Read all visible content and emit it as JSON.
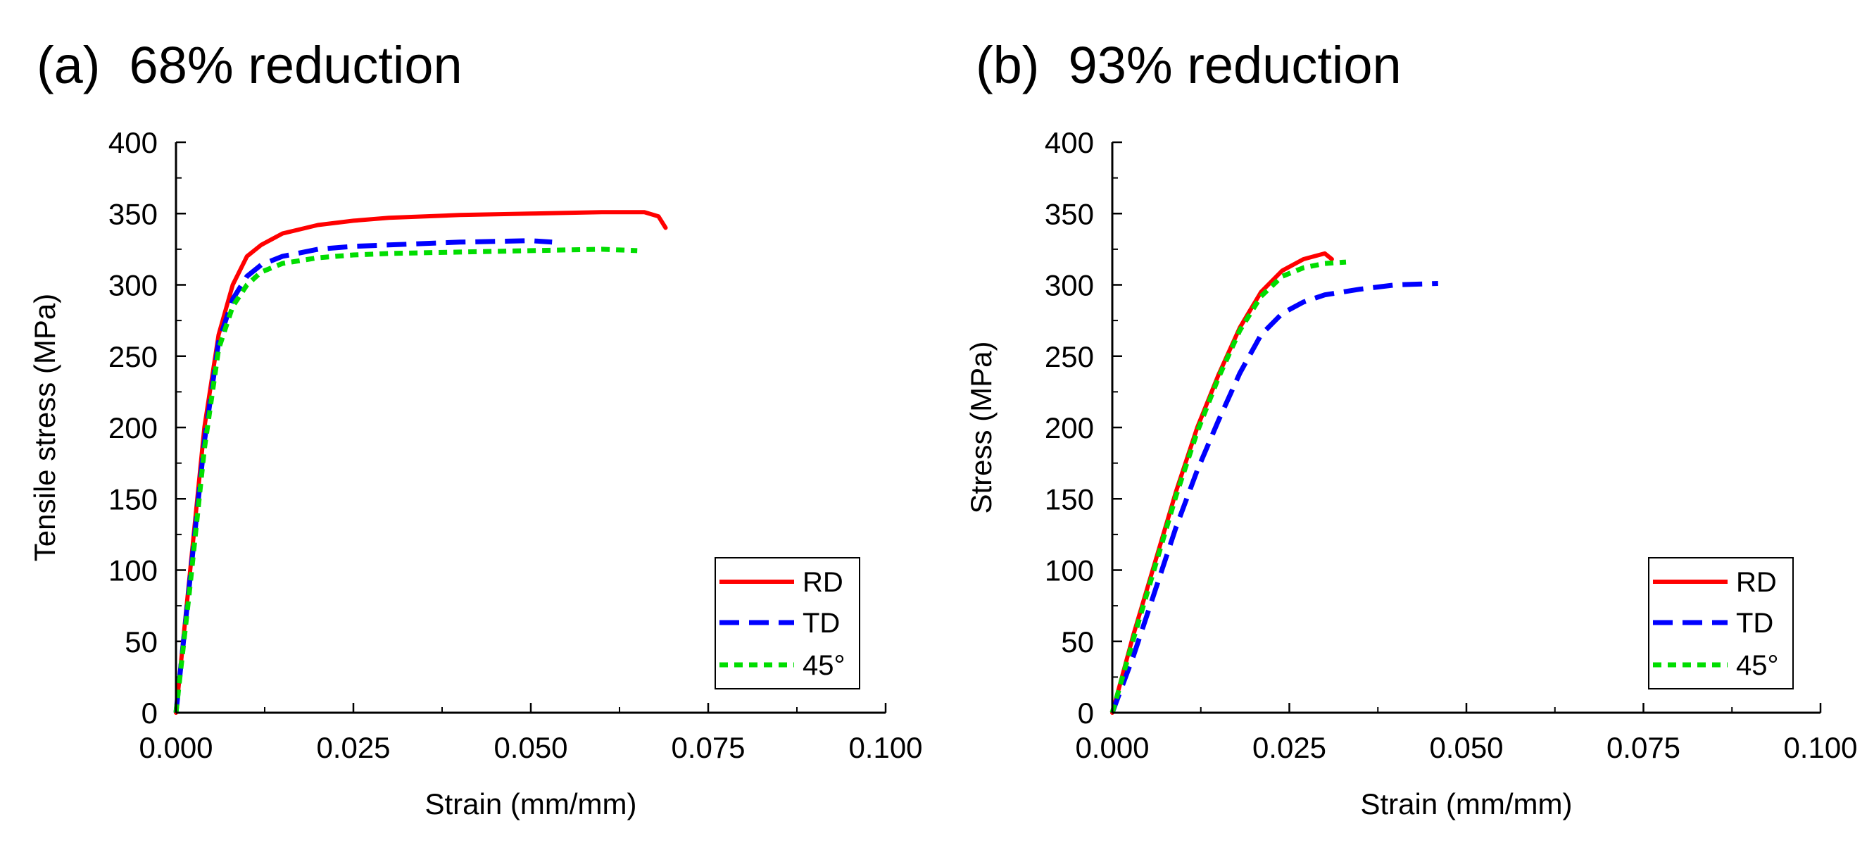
{
  "chart_data": [
    {
      "type": "line",
      "title": "(a)  68% reduction",
      "xlabel": "Strain (mm/mm)",
      "ylabel": "Tensile stress (MPa)",
      "xlim": [
        0,
        0.1
      ],
      "ylim": [
        0,
        400
      ],
      "xticks": [
        0,
        0.025,
        0.05,
        0.075,
        0.1
      ],
      "xtick_labels": [
        "0.000",
        "0.025",
        "0.050",
        "0.075",
        "0.100"
      ],
      "yticks": [
        0,
        50,
        100,
        150,
        200,
        250,
        300,
        350,
        400
      ],
      "ytick_labels": [
        "0",
        "50",
        "100",
        "150",
        "200",
        "250",
        "300",
        "350",
        "400"
      ],
      "legend_position": "bottom-right",
      "series": [
        {
          "name": "RD",
          "color": "#ff0000",
          "style": "solid",
          "x": [
            0,
            0.002,
            0.004,
            0.006,
            0.008,
            0.01,
            0.012,
            0.015,
            0.02,
            0.025,
            0.03,
            0.04,
            0.05,
            0.06,
            0.066,
            0.068,
            0.069
          ],
          "y": [
            0,
            100,
            200,
            265,
            300,
            320,
            328,
            336,
            342,
            345,
            347,
            349,
            350,
            351,
            351,
            348,
            340
          ]
        },
        {
          "name": "TD",
          "color": "#0000ff",
          "style": "dash",
          "x": [
            0,
            0.002,
            0.004,
            0.006,
            0.008,
            0.01,
            0.012,
            0.015,
            0.02,
            0.025,
            0.03,
            0.04,
            0.05,
            0.053
          ],
          "y": [
            0,
            95,
            190,
            260,
            290,
            306,
            314,
            320,
            325,
            327,
            328,
            330,
            331,
            330
          ]
        },
        {
          "name": "45°",
          "color": "#00dd00",
          "style": "dot",
          "x": [
            0,
            0.002,
            0.004,
            0.006,
            0.008,
            0.01,
            0.012,
            0.015,
            0.02,
            0.025,
            0.03,
            0.04,
            0.05,
            0.06,
            0.065
          ],
          "y": [
            0,
            90,
            185,
            255,
            285,
            300,
            309,
            315,
            319,
            321,
            322,
            323,
            324,
            325,
            324
          ]
        }
      ]
    },
    {
      "type": "line",
      "title": "(b)  93% reduction",
      "xlabel": "Strain (mm/mm)",
      "ylabel": "Stress (MPa)",
      "xlim": [
        0,
        0.1
      ],
      "ylim": [
        0,
        400
      ],
      "xticks": [
        0,
        0.025,
        0.05,
        0.075,
        0.1
      ],
      "xtick_labels": [
        "0.000",
        "0.025",
        "0.050",
        "0.075",
        "0.100"
      ],
      "yticks": [
        0,
        50,
        100,
        150,
        200,
        250,
        300,
        350,
        400
      ],
      "ytick_labels": [
        "0",
        "50",
        "100",
        "150",
        "200",
        "250",
        "300",
        "350",
        "400"
      ],
      "legend_position": "bottom-right",
      "series": [
        {
          "name": "RD",
          "color": "#ff0000",
          "style": "solid",
          "x": [
            0,
            0.003,
            0.006,
            0.009,
            0.012,
            0.015,
            0.018,
            0.021,
            0.024,
            0.027,
            0.03,
            0.031
          ],
          "y": [
            0,
            55,
            105,
            155,
            200,
            237,
            270,
            295,
            310,
            318,
            322,
            318
          ]
        },
        {
          "name": "TD",
          "color": "#0000ff",
          "style": "dash",
          "x": [
            0,
            0.003,
            0.006,
            0.009,
            0.012,
            0.015,
            0.018,
            0.021,
            0.024,
            0.027,
            0.03,
            0.035,
            0.04,
            0.046
          ],
          "y": [
            0,
            40,
            85,
            130,
            170,
            205,
            238,
            265,
            280,
            288,
            293,
            297,
            300,
            301
          ]
        },
        {
          "name": "45°",
          "color": "#00dd00",
          "style": "dot",
          "x": [
            0,
            0.003,
            0.006,
            0.009,
            0.012,
            0.015,
            0.018,
            0.021,
            0.024,
            0.027,
            0.03,
            0.033
          ],
          "y": [
            0,
            52,
            102,
            152,
            197,
            235,
            268,
            292,
            306,
            312,
            315,
            316
          ]
        }
      ]
    }
  ]
}
